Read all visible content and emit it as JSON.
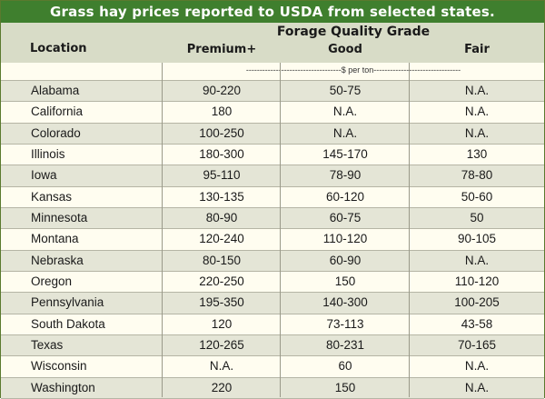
{
  "title": "Grass hay prices reported to USDA from selected states.",
  "header": {
    "location": "Location",
    "grade_group": "Forage Quality Grade",
    "premium": "Premium+",
    "good": "Good",
    "fair": "Fair"
  },
  "units": "-----------------------------------$ per ton--------------------------------",
  "rows": [
    {
      "location": "Alabama",
      "premium": "90-220",
      "good": "50-75",
      "fair": "N.A."
    },
    {
      "location": "California",
      "premium": "180",
      "good": "N.A.",
      "fair": "N.A."
    },
    {
      "location": "Colorado",
      "premium": "100-250",
      "good": "N.A.",
      "fair": "N.A."
    },
    {
      "location": "Illinois",
      "premium": "180-300",
      "good": "145-170",
      "fair": "130"
    },
    {
      "location": "Iowa",
      "premium": "95-110",
      "good": "78-90",
      "fair": "78-80"
    },
    {
      "location": "Kansas",
      "premium": "130-135",
      "good": "60-120",
      "fair": "50-60"
    },
    {
      "location": "Minnesota",
      "premium": "80-90",
      "good": "60-75",
      "fair": "50"
    },
    {
      "location": "Montana",
      "premium": "120-240",
      "good": "110-120",
      "fair": "90-105"
    },
    {
      "location": "Nebraska",
      "premium": "80-150",
      "good": "60-90",
      "fair": "N.A."
    },
    {
      "location": "Oregon",
      "premium": "220-250",
      "good": "150",
      "fair": "110-120"
    },
    {
      "location": "Pennsylvania",
      "premium": "195-350",
      "good": "140-300",
      "fair": "100-205"
    },
    {
      "location": "South Dakota",
      "premium": "120",
      "good": "73-113",
      "fair": "43-58"
    },
    {
      "location": "Texas",
      "premium": "120-265",
      "good": "80-231",
      "fair": "70-165"
    },
    {
      "location": "Wisconsin",
      "premium": "N.A.",
      "good": "60",
      "fair": "N.A."
    },
    {
      "location": "Washington",
      "premium": "220",
      "good": "150",
      "fair": "N.A."
    }
  ],
  "colors": {
    "title_bg": "#3f7f2e",
    "header_bg": "#d8dcc7",
    "row_shaded": "#e4e5d6",
    "row_light": "#fffdf0"
  }
}
